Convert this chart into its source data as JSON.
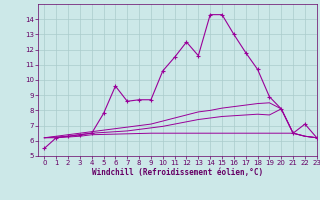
{
  "xlabel": "Windchill (Refroidissement éolien,°C)",
  "x": [
    0,
    1,
    2,
    3,
    4,
    5,
    6,
    7,
    8,
    9,
    10,
    11,
    12,
    13,
    14,
    15,
    16,
    17,
    18,
    19,
    20,
    21,
    22,
    23
  ],
  "y_main": [
    5.5,
    6.2,
    6.3,
    6.4,
    6.5,
    7.8,
    9.6,
    8.6,
    8.7,
    8.7,
    10.6,
    11.5,
    12.5,
    11.6,
    14.3,
    14.3,
    13.0,
    11.8,
    10.7,
    8.9,
    8.1,
    6.5,
    7.1,
    6.2
  ],
  "y_line1": [
    6.2,
    6.3,
    6.4,
    6.5,
    6.6,
    6.7,
    6.8,
    6.9,
    7.0,
    7.1,
    7.3,
    7.5,
    7.7,
    7.9,
    8.0,
    8.15,
    8.25,
    8.35,
    8.45,
    8.5,
    8.1,
    6.5,
    6.3,
    6.2
  ],
  "y_line2": [
    6.2,
    6.25,
    6.3,
    6.4,
    6.5,
    6.55,
    6.6,
    6.65,
    6.75,
    6.85,
    6.95,
    7.1,
    7.25,
    7.4,
    7.5,
    7.6,
    7.65,
    7.7,
    7.75,
    7.7,
    8.1,
    6.5,
    6.3,
    6.2
  ],
  "y_line3": [
    6.2,
    6.2,
    6.25,
    6.3,
    6.4,
    6.42,
    6.44,
    6.46,
    6.48,
    6.5,
    6.5,
    6.5,
    6.5,
    6.5,
    6.5,
    6.5,
    6.5,
    6.5,
    6.5,
    6.5,
    6.5,
    6.5,
    6.3,
    6.2
  ],
  "line_color": "#990099",
  "bg_color": "#cce8e8",
  "grid_color": "#aacccc",
  "text_color": "#660066",
  "ylim": [
    5,
    15
  ],
  "xlim": [
    -0.5,
    23
  ],
  "yticks": [
    5,
    6,
    7,
    8,
    9,
    10,
    11,
    12,
    13,
    14
  ],
  "xticks": [
    0,
    1,
    2,
    3,
    4,
    5,
    6,
    7,
    8,
    9,
    10,
    11,
    12,
    13,
    14,
    15,
    16,
    17,
    18,
    19,
    20,
    21,
    22,
    23
  ]
}
